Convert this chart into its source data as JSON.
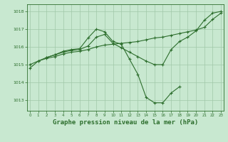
{
  "bg_color": "#c8e8d0",
  "grid_color": "#a0c8a8",
  "line_color": "#2d6e2d",
  "marker": "+",
  "title": "Graphe pression niveau de la mer (hPa)",
  "ylabel_ticks": [
    1013,
    1014,
    1015,
    1016,
    1017,
    1018
  ],
  "xlim": [
    -0.3,
    23.3
  ],
  "ylim": [
    1012.4,
    1018.4
  ],
  "series": [
    {
      "x": [
        0,
        1,
        2,
        3,
        4,
        5,
        6,
        7,
        8,
        9,
        10,
        11,
        12,
        13,
        14,
        15,
        16,
        17,
        18,
        19,
        20,
        21,
        22,
        23
      ],
      "y": [
        1014.8,
        1015.2,
        1015.4,
        1015.55,
        1015.75,
        1015.85,
        1015.9,
        1016.5,
        1017.0,
        1016.85,
        1016.3,
        1016.15,
        1015.3,
        1014.45,
        1013.15,
        1012.85,
        1012.85,
        1013.4,
        1013.75,
        null,
        null,
        null,
        null,
        null
      ]
    },
    {
      "x": [
        2,
        3,
        4,
        5,
        6,
        7,
        8,
        9,
        10,
        11,
        12,
        13,
        14,
        15,
        16,
        17,
        18,
        19,
        20,
        21,
        22,
        23
      ],
      "y": [
        1015.4,
        1015.55,
        1015.7,
        1015.8,
        1015.85,
        1016.05,
        1016.55,
        1016.7,
        1016.2,
        1015.95,
        1015.7,
        1015.45,
        1015.2,
        1015.0,
        1015.0,
        1015.85,
        1016.3,
        1016.55,
        1016.9,
        1017.5,
        1017.9,
        1018.0
      ]
    },
    {
      "x": [
        0,
        1,
        2,
        3,
        4,
        5,
        6,
        7,
        8,
        9,
        10,
        11,
        12,
        13,
        14,
        15,
        16,
        17,
        18,
        19,
        20,
        21,
        22,
        23
      ],
      "y": [
        1015.0,
        1015.2,
        1015.35,
        1015.45,
        1015.6,
        1015.7,
        1015.75,
        1015.85,
        1016.0,
        1016.1,
        1016.15,
        1016.2,
        1016.25,
        1016.3,
        1016.4,
        1016.5,
        1016.55,
        1016.65,
        1016.75,
        1016.85,
        1016.95,
        1017.1,
        1017.55,
        1017.9
      ]
    }
  ]
}
